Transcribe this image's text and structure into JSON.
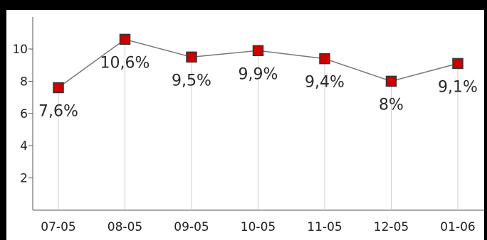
{
  "chart_data": {
    "type": "line",
    "categories": [
      "07-05",
      "08-05",
      "09-05",
      "10-05",
      "11-05",
      "12-05",
      "01-06"
    ],
    "series": [
      {
        "values": [
          7.6,
          10.6,
          9.5,
          9.9,
          9.4,
          8.0,
          9.1
        ],
        "labels": [
          "7,6%",
          "10,6%",
          "9,5%",
          "9,9%",
          "9,4%",
          "8%",
          "9,1%"
        ]
      }
    ],
    "y_ticks": [
      "2",
      "4",
      "6",
      "8",
      "10"
    ],
    "ylim": [
      0,
      11.5
    ],
    "grid": "vertical drop lines at each category",
    "legend": "none",
    "colors": {
      "line": "#777777",
      "marker_fill": "#cc0000",
      "marker_border": "#333333",
      "drop_line": "#cccccc",
      "axis": "#555555",
      "frame": "#000000"
    }
  }
}
